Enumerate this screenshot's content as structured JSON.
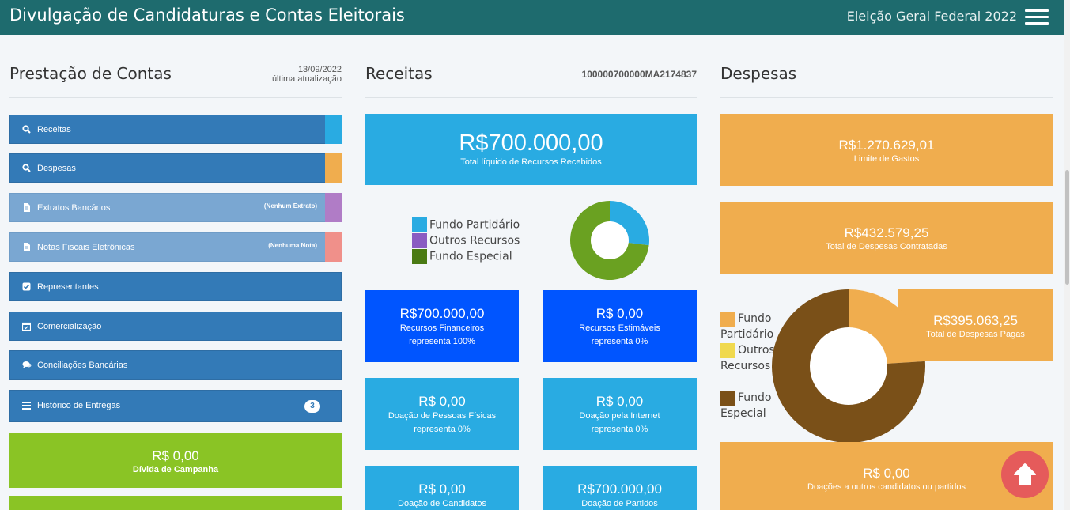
{
  "header": {
    "title": "Divulgação de Candidaturas e Contas Eleitorais",
    "election": "Eleição Geral Federal 2022"
  },
  "prestacao": {
    "title": "Prestação de Contas",
    "date": "13/09/2022",
    "date_label": "última atualização",
    "menu": [
      {
        "label": "Receitas",
        "icon": "search-icon",
        "strip": "#29abe2"
      },
      {
        "label": "Despesas",
        "icon": "search-icon",
        "strip": "#f0ad4e"
      },
      {
        "label": "Extratos Bancários",
        "icon": "document-icon",
        "note": "(Nenhum Extrato)",
        "strip": "#b07cc6"
      },
      {
        "label": "Notas Fiscais Eletrônicas",
        "icon": "document-icon",
        "note": "(Nenhuma Nota)",
        "strip": "#f0908a"
      },
      {
        "label": "Representantes",
        "icon": "checkbox-icon"
      },
      {
        "label": "Comercialização",
        "icon": "calendar-icon"
      },
      {
        "label": "Conciliações Bancárias",
        "icon": "comments-icon"
      },
      {
        "label": "Histórico de Entregas",
        "icon": "list-icon",
        "count": "3"
      }
    ],
    "divida": {
      "value": "R$ 0,00",
      "label": "Dívida de Campanha"
    }
  },
  "receitas": {
    "title": "Receitas",
    "code": "100000700000MA2174837",
    "total": {
      "value": "R$700.000,00",
      "label": "Total líquido de Recursos Recebidos"
    },
    "legend": [
      {
        "label": "Fundo Partidário",
        "color": "#29abe2"
      },
      {
        "label": "Outros Recursos",
        "color": "#8a5cc2"
      },
      {
        "label": "Fundo Especial",
        "color": "#4a7a14"
      }
    ],
    "donut": [
      {
        "label": "Fundo Partidário",
        "share": 0.27,
        "color": "#29abe2"
      },
      {
        "label": "Fundo Especial",
        "share": 0.73,
        "color": "#6aa121"
      }
    ],
    "tiles": [
      {
        "value": "R$700.000,00",
        "label": "Recursos Financeiros",
        "pct": "representa 100%",
        "color": "#0055ff"
      },
      {
        "value": "R$ 0,00",
        "label": "Recursos Estimáveis",
        "pct": "representa 0%",
        "color": "#0055ff"
      },
      {
        "value": "R$ 0,00",
        "label": "Doação de Pessoas Físicas",
        "pct": "representa 0%",
        "color": "#29abe2"
      },
      {
        "value": "R$ 0,00",
        "label": "Doação pela Internet",
        "pct": "representa 0%",
        "color": "#29abe2"
      },
      {
        "value": "R$ 0,00",
        "label": "Doação de Candidatos",
        "color": "#29abe2"
      },
      {
        "value": "R$700.000,00",
        "label": "Doação de Partidos",
        "color": "#29abe2"
      }
    ]
  },
  "despesas": {
    "title": "Despesas",
    "limite": {
      "value": "R$1.270.629,01",
      "label": "Limite de Gastos"
    },
    "contratadas": {
      "value": "R$432.579,25",
      "label": "Total de Despesas Contratadas"
    },
    "pagas": {
      "value": "R$395.063,25",
      "label": "Total de Despesas Pagas"
    },
    "legend": [
      {
        "label": "Fundo Partidário",
        "color": "#f0ad4e"
      },
      {
        "label": "Outros Recursos",
        "color": "#f0d94e"
      },
      {
        "label": "Fundo Especial",
        "color": "#7a5018"
      }
    ],
    "donut": [
      {
        "label": "Fundo Partidário",
        "share": 0.24,
        "color": "#f0ad4e"
      },
      {
        "label": "Fundo Especial",
        "share": 0.76,
        "color": "#7a5018"
      }
    ],
    "doacoes": {
      "value": "R$ 0,00",
      "label": "Doações a outros candidatos ou partidos"
    }
  }
}
